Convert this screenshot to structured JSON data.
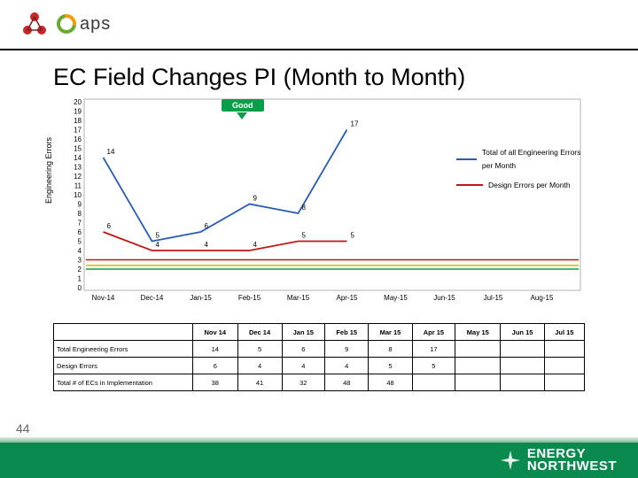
{
  "page_number": "44",
  "title": "EC Field Changes PI (Month to Month)",
  "good_label": "Good",
  "y_axis_label": "Engineering Errors",
  "chart": {
    "type": "line",
    "ylim": [
      0,
      20
    ],
    "yticks": [
      0,
      1,
      2,
      3,
      4,
      5,
      6,
      7,
      8,
      9,
      10,
      11,
      12,
      13,
      14,
      15,
      16,
      17,
      18,
      19,
      20
    ],
    "categories": [
      "Nov-14",
      "Dec-14",
      "Jan-15",
      "Feb-15",
      "Mar-15",
      "Apr-15",
      "May-15",
      "Jun-15",
      "Jul-15",
      "Aug-15"
    ],
    "series": [
      {
        "name": "Total of all Engineering Errors per Month",
        "color": "#2a5db0",
        "data": [
          14,
          5,
          6,
          9,
          8,
          17,
          null,
          null,
          null,
          null
        ],
        "show_labels": true
      },
      {
        "name": "Design Errors per Month",
        "color": "#c01818",
        "data": [
          6,
          4,
          4,
          4,
          5,
          5,
          null,
          null,
          null,
          null
        ],
        "show_labels": true
      }
    ],
    "ref_lines": [
      {
        "y": 3.0,
        "color": "#c01818"
      },
      {
        "y": 2.4,
        "color": "#d6c100"
      },
      {
        "y": 2.0,
        "color": "#0a9e4a"
      }
    ],
    "plot_bg": "#ffffff",
    "grid_color": "#bfbfbf",
    "axis_font_size": 8,
    "label_font_size": 8
  },
  "legend": {
    "items": [
      {
        "label": "Total of all Engineering Errors per Month",
        "color": "#2a5db0"
      },
      {
        "label": "Design Errors per Month",
        "color": "#c01818"
      }
    ]
  },
  "table": {
    "columns": [
      "",
      "Nov 14",
      "Dec 14",
      "Jan 15",
      "Feb 15",
      "Mar 15",
      "Apr 15",
      "May 15",
      "Jun 15",
      "Jul 15"
    ],
    "rows": [
      [
        "Total Engineering Errors",
        "14",
        "5",
        "6",
        "9",
        "8",
        "17",
        "",
        "",
        ""
      ],
      [
        "Design Errors",
        "6",
        "4",
        "4",
        "4",
        "5",
        "5",
        "",
        "",
        ""
      ],
      [
        "Total # of ECs in Implementation",
        "38",
        "41",
        "32",
        "48",
        "48",
        "",
        "",
        "",
        ""
      ]
    ]
  },
  "footer_logo": {
    "line1": "ENERGY",
    "line2": "NORTHWEST"
  },
  "colors": {
    "footer_green": "#0a8a4e",
    "title_color": "#000000"
  }
}
